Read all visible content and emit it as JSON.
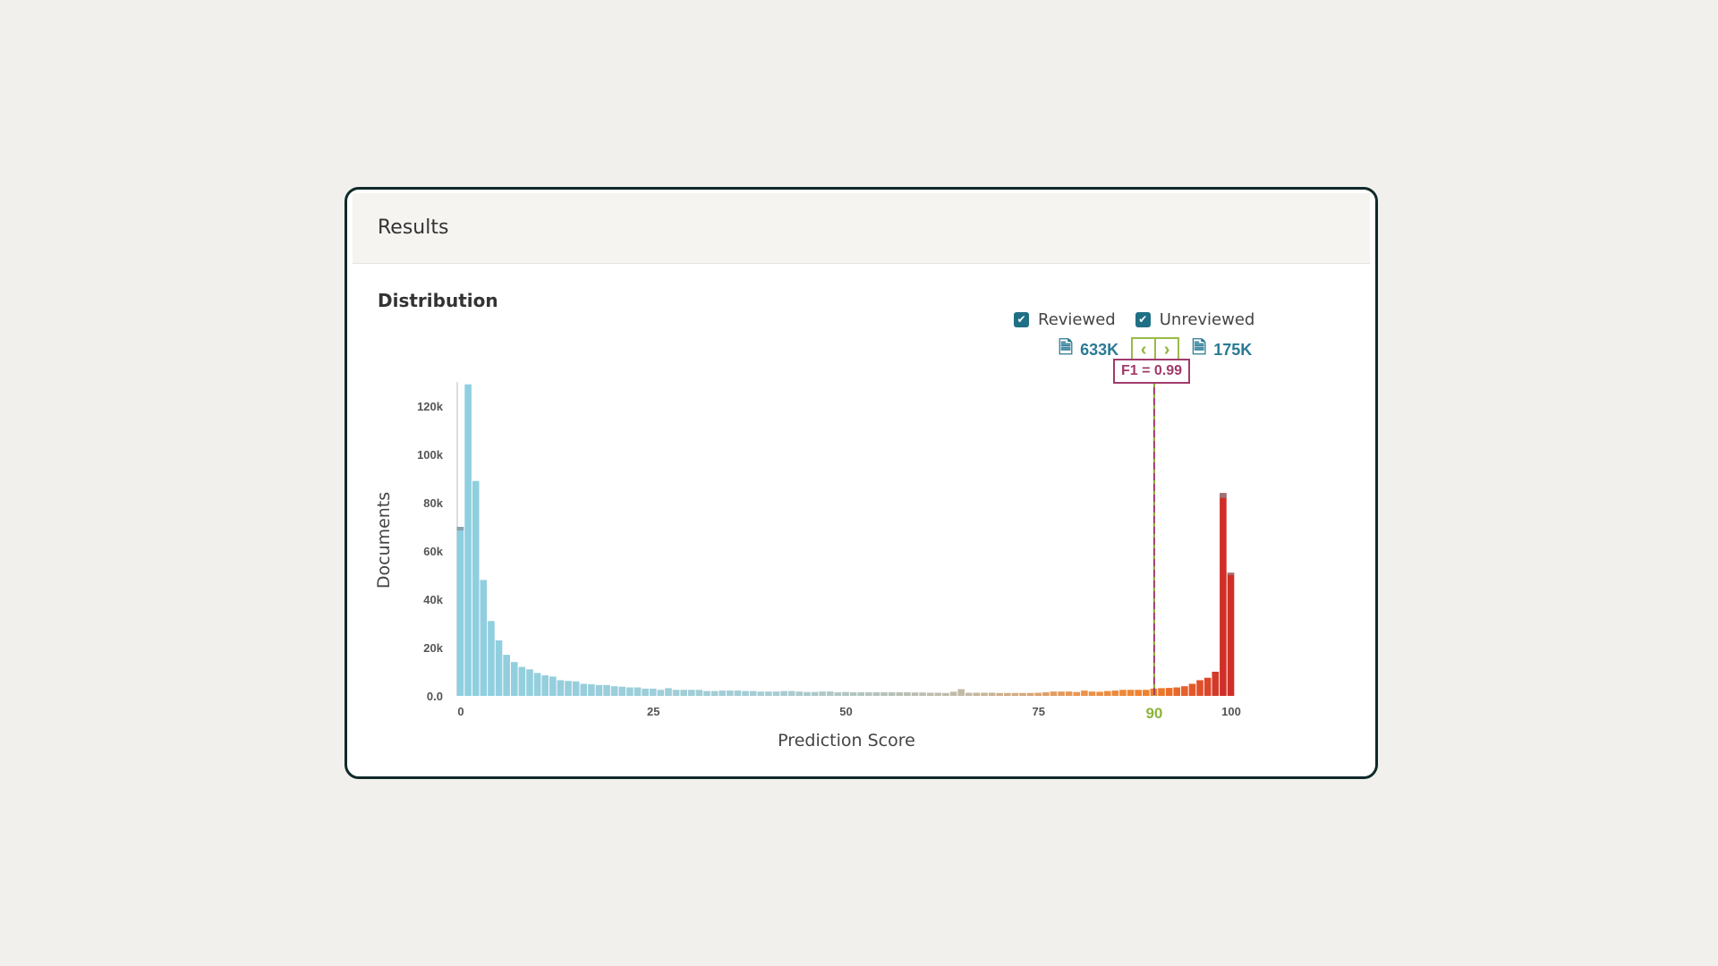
{
  "card": {
    "title": "Results",
    "section": "Distribution"
  },
  "legend": {
    "reviewed": "Reviewed",
    "unreviewed": "Unreviewed",
    "reviewed_checked": true,
    "unreviewed_checked": true
  },
  "counts": {
    "below": "633K",
    "above": "175K",
    "icon": "document-search-icon"
  },
  "threshold": {
    "label": "F1 = 0.99",
    "value": 90,
    "color": "#8db33a"
  },
  "colors": {
    "accent": "#1f6f85",
    "f1": "#a03a6a",
    "low": "#8ecfe0",
    "high": "#d02e28",
    "reviewed": "#8a8f94"
  },
  "chart_data": {
    "type": "bar",
    "xlabel": "Prediction Score",
    "ylabel": "Documents",
    "xlim": [
      0,
      100
    ],
    "ylim": [
      0,
      130000
    ],
    "xticks": [
      "0",
      "25",
      "50",
      "75",
      "90",
      "100"
    ],
    "yticks": [
      "0.0",
      "20k",
      "40k",
      "60k",
      "80k",
      "100k",
      "120k"
    ],
    "ytick_values": [
      0,
      20000,
      40000,
      60000,
      80000,
      100000,
      120000
    ],
    "xtick_values": [
      0,
      25,
      50,
      75,
      90,
      100
    ],
    "values": [
      70000,
      129000,
      89000,
      48000,
      31000,
      23000,
      17000,
      14000,
      12000,
      11000,
      9500,
      8500,
      8000,
      6500,
      6200,
      6000,
      5000,
      4800,
      4500,
      4500,
      4000,
      3800,
      3500,
      3500,
      3000,
      3000,
      2500,
      3200,
      2500,
      2500,
      2500,
      2500,
      2000,
      2000,
      2200,
      2200,
      2200,
      2000,
      2000,
      1800,
      1800,
      1800,
      2000,
      2000,
      1800,
      1600,
      1600,
      1800,
      1800,
      1500,
      1600,
      1500,
      1500,
      1500,
      1500,
      1500,
      1500,
      1500,
      1500,
      1400,
      1400,
      1300,
      1300,
      1200,
      1700,
      2800,
      1300,
      1300,
      1300,
      1300,
      1200,
      1200,
      1200,
      1200,
      1200,
      1300,
      1500,
      1800,
      1800,
      1800,
      1600,
      2200,
      1800,
      1700,
      2000,
      2200,
      2500,
      2500,
      2500,
      2500,
      3000,
      3200,
      3300,
      3500,
      4000,
      5000,
      6500,
      7500,
      10000,
      84000,
      51000
    ],
    "reviewed": {
      "0": 1500,
      "99": 2000,
      "100": 1000
    },
    "grid": false
  }
}
